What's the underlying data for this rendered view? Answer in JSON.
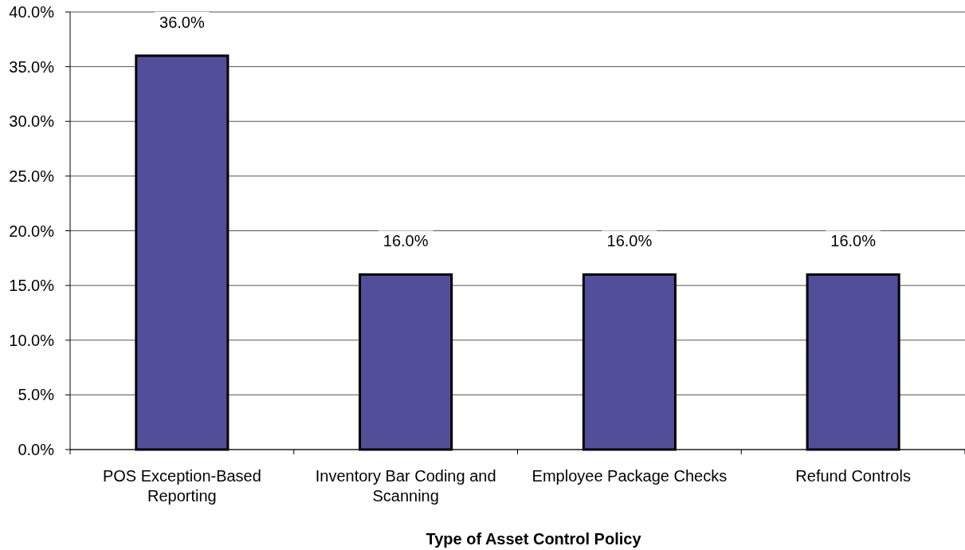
{
  "chart_data": {
    "type": "bar",
    "xlabel": "Type of Asset Control Policy",
    "categories": [
      "POS Exception-Based Reporting",
      "Inventory Bar Coding and Scanning",
      "Employee Package Checks",
      "Refund Controls"
    ],
    "values": [
      36,
      16,
      16,
      16
    ],
    "color": "#524f9a",
    "value_labels": [
      "36.0%",
      "16.0%",
      "16.0%",
      "16.0%"
    ],
    "ylim": [
      0,
      40
    ],
    "yticks": [
      {
        "value": 0,
        "label": "0.0%"
      },
      {
        "value": 5,
        "label": "5.0%"
      },
      {
        "value": 10,
        "label": "10.0%"
      },
      {
        "value": 15,
        "label": "15.0%"
      },
      {
        "value": 20,
        "label": "20.0%"
      },
      {
        "value": 25,
        "label": "25.0%"
      },
      {
        "value": 30,
        "label": "30.0%"
      },
      {
        "value": 35,
        "label": "35.0%"
      },
      {
        "value": 40,
        "label": "40.0%"
      }
    ],
    "grid": "y"
  }
}
